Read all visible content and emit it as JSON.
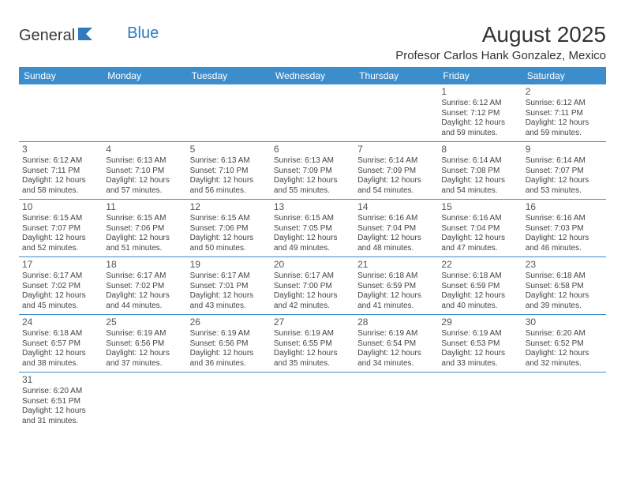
{
  "logo": {
    "text1": "General",
    "text2": "Blue"
  },
  "title": "August 2025",
  "location": "Profesor Carlos Hank Gonzalez, Mexico",
  "colors": {
    "header_bg": "#3c8dcc",
    "header_fg": "#ffffff",
    "row_border": "#3c8dcc",
    "logo_blue": "#2f7ac0",
    "text": "#444444",
    "background": "#ffffff"
  },
  "day_names": [
    "Sunday",
    "Monday",
    "Tuesday",
    "Wednesday",
    "Thursday",
    "Friday",
    "Saturday"
  ],
  "weeks": [
    [
      null,
      null,
      null,
      null,
      null,
      {
        "n": "1",
        "sr": "Sunrise: 6:12 AM",
        "ss": "Sunset: 7:12 PM",
        "d1": "Daylight: 12 hours",
        "d2": "and 59 minutes."
      },
      {
        "n": "2",
        "sr": "Sunrise: 6:12 AM",
        "ss": "Sunset: 7:11 PM",
        "d1": "Daylight: 12 hours",
        "d2": "and 59 minutes."
      }
    ],
    [
      {
        "n": "3",
        "sr": "Sunrise: 6:12 AM",
        "ss": "Sunset: 7:11 PM",
        "d1": "Daylight: 12 hours",
        "d2": "and 58 minutes."
      },
      {
        "n": "4",
        "sr": "Sunrise: 6:13 AM",
        "ss": "Sunset: 7:10 PM",
        "d1": "Daylight: 12 hours",
        "d2": "and 57 minutes."
      },
      {
        "n": "5",
        "sr": "Sunrise: 6:13 AM",
        "ss": "Sunset: 7:10 PM",
        "d1": "Daylight: 12 hours",
        "d2": "and 56 minutes."
      },
      {
        "n": "6",
        "sr": "Sunrise: 6:13 AM",
        "ss": "Sunset: 7:09 PM",
        "d1": "Daylight: 12 hours",
        "d2": "and 55 minutes."
      },
      {
        "n": "7",
        "sr": "Sunrise: 6:14 AM",
        "ss": "Sunset: 7:09 PM",
        "d1": "Daylight: 12 hours",
        "d2": "and 54 minutes."
      },
      {
        "n": "8",
        "sr": "Sunrise: 6:14 AM",
        "ss": "Sunset: 7:08 PM",
        "d1": "Daylight: 12 hours",
        "d2": "and 54 minutes."
      },
      {
        "n": "9",
        "sr": "Sunrise: 6:14 AM",
        "ss": "Sunset: 7:07 PM",
        "d1": "Daylight: 12 hours",
        "d2": "and 53 minutes."
      }
    ],
    [
      {
        "n": "10",
        "sr": "Sunrise: 6:15 AM",
        "ss": "Sunset: 7:07 PM",
        "d1": "Daylight: 12 hours",
        "d2": "and 52 minutes."
      },
      {
        "n": "11",
        "sr": "Sunrise: 6:15 AM",
        "ss": "Sunset: 7:06 PM",
        "d1": "Daylight: 12 hours",
        "d2": "and 51 minutes."
      },
      {
        "n": "12",
        "sr": "Sunrise: 6:15 AM",
        "ss": "Sunset: 7:06 PM",
        "d1": "Daylight: 12 hours",
        "d2": "and 50 minutes."
      },
      {
        "n": "13",
        "sr": "Sunrise: 6:15 AM",
        "ss": "Sunset: 7:05 PM",
        "d1": "Daylight: 12 hours",
        "d2": "and 49 minutes."
      },
      {
        "n": "14",
        "sr": "Sunrise: 6:16 AM",
        "ss": "Sunset: 7:04 PM",
        "d1": "Daylight: 12 hours",
        "d2": "and 48 minutes."
      },
      {
        "n": "15",
        "sr": "Sunrise: 6:16 AM",
        "ss": "Sunset: 7:04 PM",
        "d1": "Daylight: 12 hours",
        "d2": "and 47 minutes."
      },
      {
        "n": "16",
        "sr": "Sunrise: 6:16 AM",
        "ss": "Sunset: 7:03 PM",
        "d1": "Daylight: 12 hours",
        "d2": "and 46 minutes."
      }
    ],
    [
      {
        "n": "17",
        "sr": "Sunrise: 6:17 AM",
        "ss": "Sunset: 7:02 PM",
        "d1": "Daylight: 12 hours",
        "d2": "and 45 minutes."
      },
      {
        "n": "18",
        "sr": "Sunrise: 6:17 AM",
        "ss": "Sunset: 7:02 PM",
        "d1": "Daylight: 12 hours",
        "d2": "and 44 minutes."
      },
      {
        "n": "19",
        "sr": "Sunrise: 6:17 AM",
        "ss": "Sunset: 7:01 PM",
        "d1": "Daylight: 12 hours",
        "d2": "and 43 minutes."
      },
      {
        "n": "20",
        "sr": "Sunrise: 6:17 AM",
        "ss": "Sunset: 7:00 PM",
        "d1": "Daylight: 12 hours",
        "d2": "and 42 minutes."
      },
      {
        "n": "21",
        "sr": "Sunrise: 6:18 AM",
        "ss": "Sunset: 6:59 PM",
        "d1": "Daylight: 12 hours",
        "d2": "and 41 minutes."
      },
      {
        "n": "22",
        "sr": "Sunrise: 6:18 AM",
        "ss": "Sunset: 6:59 PM",
        "d1": "Daylight: 12 hours",
        "d2": "and 40 minutes."
      },
      {
        "n": "23",
        "sr": "Sunrise: 6:18 AM",
        "ss": "Sunset: 6:58 PM",
        "d1": "Daylight: 12 hours",
        "d2": "and 39 minutes."
      }
    ],
    [
      {
        "n": "24",
        "sr": "Sunrise: 6:18 AM",
        "ss": "Sunset: 6:57 PM",
        "d1": "Daylight: 12 hours",
        "d2": "and 38 minutes."
      },
      {
        "n": "25",
        "sr": "Sunrise: 6:19 AM",
        "ss": "Sunset: 6:56 PM",
        "d1": "Daylight: 12 hours",
        "d2": "and 37 minutes."
      },
      {
        "n": "26",
        "sr": "Sunrise: 6:19 AM",
        "ss": "Sunset: 6:56 PM",
        "d1": "Daylight: 12 hours",
        "d2": "and 36 minutes."
      },
      {
        "n": "27",
        "sr": "Sunrise: 6:19 AM",
        "ss": "Sunset: 6:55 PM",
        "d1": "Daylight: 12 hours",
        "d2": "and 35 minutes."
      },
      {
        "n": "28",
        "sr": "Sunrise: 6:19 AM",
        "ss": "Sunset: 6:54 PM",
        "d1": "Daylight: 12 hours",
        "d2": "and 34 minutes."
      },
      {
        "n": "29",
        "sr": "Sunrise: 6:19 AM",
        "ss": "Sunset: 6:53 PM",
        "d1": "Daylight: 12 hours",
        "d2": "and 33 minutes."
      },
      {
        "n": "30",
        "sr": "Sunrise: 6:20 AM",
        "ss": "Sunset: 6:52 PM",
        "d1": "Daylight: 12 hours",
        "d2": "and 32 minutes."
      }
    ],
    [
      {
        "n": "31",
        "sr": "Sunrise: 6:20 AM",
        "ss": "Sunset: 6:51 PM",
        "d1": "Daylight: 12 hours",
        "d2": "and 31 minutes."
      },
      null,
      null,
      null,
      null,
      null,
      null
    ]
  ]
}
